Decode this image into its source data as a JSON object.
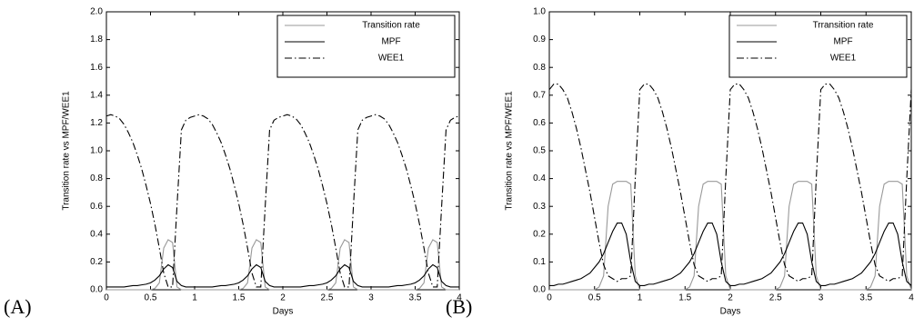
{
  "chart_data": [
    {
      "type": "line",
      "panel_label": "(A)",
      "xlabel": "Days",
      "ylabel": "Transition rate vs MPF/WEE1",
      "xlim": [
        0,
        4
      ],
      "xticks": [
        0,
        0.5,
        1,
        1.5,
        2,
        2.5,
        3,
        3.5,
        4
      ],
      "ylim": [
        0,
        2
      ],
      "yticks": [
        {
          "value": 0,
          "label": "0.0"
        },
        0.2,
        0.4,
        0.6,
        0.8,
        {
          "value": 1,
          "label": "1.0"
        },
        1.2,
        1.4,
        1.6,
        1.8,
        {
          "value": 2,
          "label": "2.0"
        }
      ],
      "legend": "upper right",
      "grid": false,
      "x": [
        0,
        0.05,
        0.1,
        0.15,
        0.2,
        0.25,
        0.3,
        0.35,
        0.4,
        0.45,
        0.5,
        0.55,
        0.6,
        0.65,
        0.7,
        0.75,
        0.8,
        0.85,
        0.9,
        0.95,
        1,
        1.05,
        1.1,
        1.15,
        1.2,
        1.25,
        1.3,
        1.35,
        1.4,
        1.45,
        1.5,
        1.55,
        1.6,
        1.65,
        1.7,
        1.75,
        1.8,
        1.85,
        1.9,
        1.95,
        2,
        2.05,
        2.1,
        2.15,
        2.2,
        2.25,
        2.3,
        2.35,
        2.4,
        2.45,
        2.5,
        2.55,
        2.6,
        2.65,
        2.7,
        2.75,
        2.8,
        2.85,
        2.9,
        2.95,
        3,
        3.05,
        3.1,
        3.15,
        3.2,
        3.25,
        3.3,
        3.35,
        3.4,
        3.45,
        3.5,
        3.55,
        3.6,
        3.65,
        3.7,
        3.75,
        3.8,
        3.85,
        3.9,
        3.95,
        4
      ],
      "series": [
        {
          "name": "Transition rate",
          "color": "#999999",
          "linestyle": "solid",
          "values": [
            0,
            0,
            0,
            0,
            0,
            0,
            0,
            0,
            0,
            0,
            0,
            0.01,
            0.05,
            0.3,
            0.36,
            0.34,
            0.02,
            0,
            0,
            0,
            0,
            0,
            0,
            0,
            0,
            0,
            0,
            0,
            0,
            0,
            0,
            0.01,
            0.05,
            0.3,
            0.36,
            0.34,
            0.02,
            0,
            0,
            0,
            0,
            0,
            0,
            0,
            0,
            0,
            0,
            0,
            0,
            0,
            0,
            0.01,
            0.05,
            0.3,
            0.36,
            0.34,
            0.02,
            0,
            0,
            0,
            0,
            0,
            0,
            0,
            0,
            0,
            0,
            0,
            0,
            0,
            0,
            0.01,
            0.05,
            0.3,
            0.36,
            0.34,
            0.02,
            0,
            0,
            0,
            0
          ]
        },
        {
          "name": "MPF",
          "color": "#000000",
          "linestyle": "solid",
          "values": [
            0.02,
            0.02,
            0.02,
            0.02,
            0.02,
            0.025,
            0.03,
            0.03,
            0.035,
            0.04,
            0.05,
            0.07,
            0.1,
            0.15,
            0.18,
            0.16,
            0.06,
            0.03,
            0.02,
            0.02,
            0.02,
            0.02,
            0.02,
            0.02,
            0.02,
            0.025,
            0.03,
            0.03,
            0.035,
            0.04,
            0.05,
            0.07,
            0.1,
            0.15,
            0.18,
            0.16,
            0.06,
            0.03,
            0.02,
            0.02,
            0.02,
            0.02,
            0.02,
            0.02,
            0.02,
            0.025,
            0.03,
            0.03,
            0.035,
            0.04,
            0.05,
            0.07,
            0.1,
            0.15,
            0.18,
            0.16,
            0.06,
            0.03,
            0.02,
            0.02,
            0.02,
            0.02,
            0.02,
            0.02,
            0.02,
            0.025,
            0.03,
            0.03,
            0.035,
            0.04,
            0.05,
            0.07,
            0.1,
            0.15,
            0.18,
            0.16,
            0.06,
            0.03,
            0.02,
            0.02,
            0.02
          ]
        },
        {
          "name": "WEE1",
          "color": "#000000",
          "linestyle": "dashdot",
          "values": [
            1.25,
            1.26,
            1.25,
            1.23,
            1.19,
            1.13,
            1.06,
            0.97,
            0.87,
            0.75,
            0.62,
            0.47,
            0.3,
            0.12,
            0.02,
            0.02,
            0.6,
            1.15,
            1.22,
            1.24,
            1.25,
            1.26,
            1.25,
            1.23,
            1.19,
            1.13,
            1.06,
            0.97,
            0.87,
            0.75,
            0.62,
            0.47,
            0.3,
            0.12,
            0.02,
            0.02,
            0.6,
            1.15,
            1.22,
            1.24,
            1.25,
            1.26,
            1.25,
            1.23,
            1.19,
            1.13,
            1.06,
            0.97,
            0.87,
            0.75,
            0.62,
            0.47,
            0.3,
            0.12,
            0.02,
            0.02,
            0.6,
            1.15,
            1.22,
            1.24,
            1.25,
            1.26,
            1.25,
            1.23,
            1.19,
            1.13,
            1.06,
            0.97,
            0.87,
            0.75,
            0.62,
            0.47,
            0.3,
            0.12,
            0.02,
            0.02,
            0.6,
            1.15,
            1.22,
            1.24,
            1.25
          ]
        }
      ]
    },
    {
      "type": "line",
      "panel_label": "(B)",
      "xlabel": "Days",
      "ylabel": "Transition rate vs MPF/WEE1",
      "xlim": [
        0,
        4
      ],
      "xticks": [
        0,
        0.5,
        1,
        1.5,
        2,
        2.5,
        3,
        3.5,
        4
      ],
      "ylim": [
        0,
        1
      ],
      "yticks": [
        {
          "value": 0,
          "label": "0.0"
        },
        0.1,
        0.2,
        0.3,
        0.4,
        0.5,
        0.6,
        0.7,
        0.8,
        0.9,
        {
          "value": 1,
          "label": "1.0"
        }
      ],
      "legend": "upper right",
      "grid": false,
      "x": [
        0,
        0.05,
        0.1,
        0.15,
        0.2,
        0.25,
        0.3,
        0.35,
        0.4,
        0.45,
        0.5,
        0.55,
        0.6,
        0.65,
        0.7,
        0.75,
        0.8,
        0.85,
        0.9,
        0.95,
        1,
        1.05,
        1.1,
        1.15,
        1.2,
        1.25,
        1.3,
        1.35,
        1.4,
        1.45,
        1.5,
        1.55,
        1.6,
        1.65,
        1.7,
        1.75,
        1.8,
        1.85,
        1.9,
        1.95,
        2,
        2.05,
        2.1,
        2.15,
        2.2,
        2.25,
        2.3,
        2.35,
        2.4,
        2.45,
        2.5,
        2.55,
        2.6,
        2.65,
        2.7,
        2.75,
        2.8,
        2.85,
        2.9,
        2.95,
        3,
        3.05,
        3.1,
        3.15,
        3.2,
        3.25,
        3.3,
        3.35,
        3.4,
        3.45,
        3.5,
        3.55,
        3.6,
        3.65,
        3.7,
        3.75,
        3.8,
        3.85,
        3.9,
        3.95,
        4
      ],
      "series": [
        {
          "name": "Trransition rate",
          "color": "#999999",
          "linestyle": "solid",
          "values": [
            0,
            0,
            0,
            0,
            0,
            0,
            0,
            0,
            0,
            0,
            0,
            0.01,
            0.05,
            0.3,
            0.38,
            0.39,
            0.39,
            0.39,
            0.38,
            0.05,
            0,
            0,
            0,
            0,
            0,
            0,
            0,
            0,
            0,
            0,
            0,
            0.01,
            0.05,
            0.3,
            0.38,
            0.39,
            0.39,
            0.39,
            0.38,
            0.05,
            0,
            0,
            0,
            0,
            0,
            0,
            0,
            0,
            0,
            0,
            0,
            0.01,
            0.05,
            0.3,
            0.38,
            0.39,
            0.39,
            0.39,
            0.38,
            0.05,
            0,
            0,
            0,
            0,
            0,
            0,
            0,
            0,
            0,
            0,
            0,
            0.01,
            0.05,
            0.3,
            0.38,
            0.39,
            0.39,
            0.39,
            0.38,
            0.05,
            0
          ]
        },
        {
          "name": "MPF",
          "color": "#000000",
          "linestyle": "solid",
          "values": [
            0.015,
            0.015,
            0.02,
            0.02,
            0.025,
            0.03,
            0.035,
            0.04,
            0.05,
            0.06,
            0.08,
            0.1,
            0.13,
            0.17,
            0.21,
            0.24,
            0.24,
            0.2,
            0.1,
            0.03,
            0.015,
            0.015,
            0.02,
            0.02,
            0.025,
            0.03,
            0.035,
            0.04,
            0.05,
            0.06,
            0.08,
            0.1,
            0.13,
            0.17,
            0.21,
            0.24,
            0.24,
            0.2,
            0.1,
            0.03,
            0.015,
            0.015,
            0.02,
            0.02,
            0.025,
            0.03,
            0.035,
            0.04,
            0.05,
            0.06,
            0.08,
            0.1,
            0.13,
            0.17,
            0.21,
            0.24,
            0.24,
            0.2,
            0.1,
            0.03,
            0.015,
            0.015,
            0.02,
            0.02,
            0.025,
            0.03,
            0.035,
            0.04,
            0.05,
            0.06,
            0.08,
            0.1,
            0.13,
            0.17,
            0.21,
            0.24,
            0.24,
            0.2,
            0.1,
            0.03,
            0.015
          ]
        },
        {
          "name": "WEE1",
          "color": "#000000",
          "linestyle": "dashdot",
          "values": [
            0.72,
            0.74,
            0.74,
            0.72,
            0.69,
            0.64,
            0.58,
            0.51,
            0.43,
            0.35,
            0.26,
            0.17,
            0.09,
            0.05,
            0.04,
            0.03,
            0.04,
            0.04,
            0.05,
            0.4,
            0.72,
            0.74,
            0.74,
            0.72,
            0.69,
            0.64,
            0.58,
            0.51,
            0.43,
            0.35,
            0.26,
            0.17,
            0.09,
            0.05,
            0.04,
            0.03,
            0.04,
            0.04,
            0.05,
            0.4,
            0.72,
            0.74,
            0.74,
            0.72,
            0.69,
            0.64,
            0.58,
            0.51,
            0.43,
            0.35,
            0.26,
            0.17,
            0.09,
            0.05,
            0.04,
            0.03,
            0.04,
            0.04,
            0.05,
            0.4,
            0.72,
            0.74,
            0.74,
            0.72,
            0.69,
            0.64,
            0.58,
            0.51,
            0.43,
            0.35,
            0.26,
            0.17,
            0.09,
            0.05,
            0.04,
            0.03,
            0.04,
            0.04,
            0.05,
            0.4,
            0.72
          ]
        }
      ]
    }
  ]
}
